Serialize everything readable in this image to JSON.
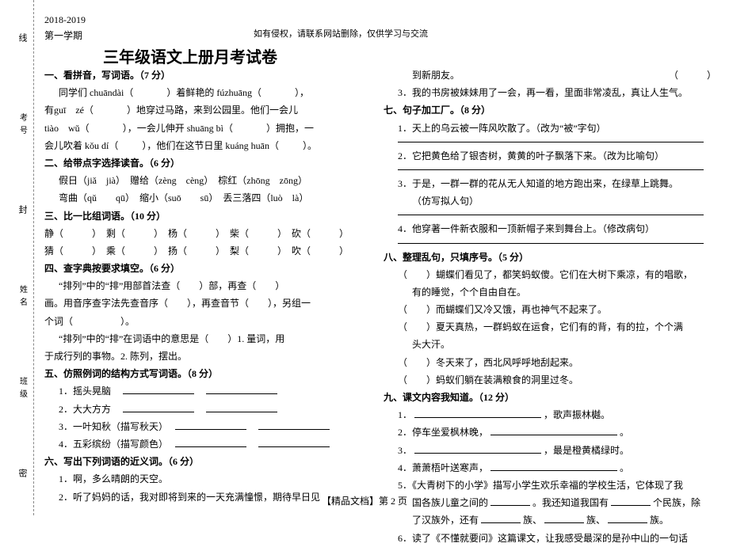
{
  "meta": {
    "year": "2018-2019",
    "term": "第一学期",
    "notice": "如有侵权，请联系网站删除，仅供学习与交流",
    "title": "三年级语文上册月考试卷",
    "footer": "【精品文档】第 2 页"
  },
  "side": {
    "a": "线",
    "b": "考号",
    "c": "封",
    "d": "姓名",
    "e": "班级",
    "f": "密"
  },
  "left": {
    "s1_title": "一、看拼音，写词语。（7 分）",
    "s1_l1a": "同学们 chuāndài（",
    "s1_l1b": "）着鲜艳的 fúzhuāng（",
    "s1_l1c": "），",
    "s1_l2a": "有guī　zé（",
    "s1_l2b": "）地穿过马路，来到公园里。他们一会儿",
    "s1_l3a": "tiào　wǔ（",
    "s1_l3b": "），一会儿伸开 shuāng bì（",
    "s1_l3c": "）拥抱，一",
    "s1_l4a": "会儿吹着 kǒu dí（",
    "s1_l4b": "），他们在这节日里 kuáng huān（",
    "s1_l4c": "）。",
    "s2_title": "二、给带点字选择读音。（6 分）",
    "s2_l1": "假日（jiǎ　jià）　赠给（zèng　cèng）　棕红（zhōng　zōng）",
    "s2_l2": "弯曲（qǔ　　qū）　缩小（suō　　sū）　丢三落四（luò　là）",
    "s3_title": "三、比一比组词语。（10 分）",
    "s3_l1": "静（　　　）　剩（　　　）　杨（　　　）　柴（　　　）　砍（　　　）",
    "s3_l2": "猜（　　　）　乘（　　　）　扬（　　　）　梨（　　　）　吹（　　　）",
    "s4_title": "四、查字典按要求填空。（6 分）",
    "s4_l1": "“排列”中的“排”用部首法查（　　）部，再查（　　）",
    "s4_l2": "画。用音序查字法先查音序（　　），再查音节（　　），另组一",
    "s4_l3": "个词（　　　　　）。",
    "s4_l4": "“排列”中的“排”在词语中的意思是（　　）1. 量词，用",
    "s4_l5": "于成行列的事物。2. 陈列，摆出。",
    "s5_title": "五、仿照例词的结构方式写词语。（8 分）",
    "s5_1": "1．摇头晃脑　",
    "s5_2": "2．大大方方　",
    "s5_3": "3．一叶知秋（描写秋天）　",
    "s5_4": "4．五彩缤纷（描写颜色）　",
    "s6_title": "六、写出下列词语的近义词。（6 分）",
    "s6_1": "1．啊，多么晴朗的天空。",
    "s6_2": "2．听了妈妈的话，我对即将到来的一天充满憧憬，期待早日见"
  },
  "right": {
    "r0_a": "到新朋友。",
    "r0_b": "（　　　）",
    "r0_c": "3．我的书房被妹妹用了一会，再一看，里面非常凌乱，真让人生气。",
    "s7_title": "七、句子加工厂。（8 分）",
    "s7_1": "1．天上的乌云被一阵风吹散了。（改为“被”字句）",
    "s7_2": "2．它把黄色给了银杏树，黄黄的叶子飘落下来。（改为比喻句）",
    "s7_3a": "3．于是，一群一群的花从无人知道的地方跑出来，在绿草上跳舞。",
    "s7_3b": "（仿写拟人句）",
    "s7_4": "4．他穿著一件新衣服和一顶新帽子来到舞台上。（修改病句）",
    "s8_title": "八、整理乱句，只填序号。（5 分）",
    "s8_1": "（　　）蝴蝶们看见了，都笑蚂蚁傻。它们在大树下乘凉，有的唱歌，",
    "s8_1b": "有的睡觉，个个自由自在。",
    "s8_2": "（　　）而蝴蝶们又冷又饿，再也神气不起来了。",
    "s8_3": "（　　）夏天真热，一群蚂蚁在运食，它们有的背，有的拉，个个满",
    "s8_3b": "头大汗。",
    "s8_4": "（　　）冬天来了，西北风呼呼地刮起来。",
    "s8_5": "（　　）蚂蚁们躺在装满粮食的洞里过冬。",
    "s9_title": "九、课文内容我知道。（12 分）",
    "s9_1a": "1．",
    "s9_1b": "，歌声振林樾。",
    "s9_2a": "2．停车坐爱枫林晚，",
    "s9_2b": "。",
    "s9_3a": "3．",
    "s9_3b": "，最是橙黄橘绿时。",
    "s9_4a": "4．萧萧梧叶送寒声，",
    "s9_4b": "。",
    "s9_5a": "5．《大青树下的小学》描写小学生欢乐幸福的学校生活，它体现了我",
    "s9_5b": "国各族儿童之间的",
    "s9_5c": "。我还知道我国有",
    "s9_5d": "个民族，除",
    "s9_5e": "了汉族外，还有",
    "s9_5f": "族、",
    "s9_5g": "族、",
    "s9_5h": "族。",
    "s9_6": "6．读了《不懂就要问》这篇课文，让我感受最深的是孙中山的一句话"
  }
}
